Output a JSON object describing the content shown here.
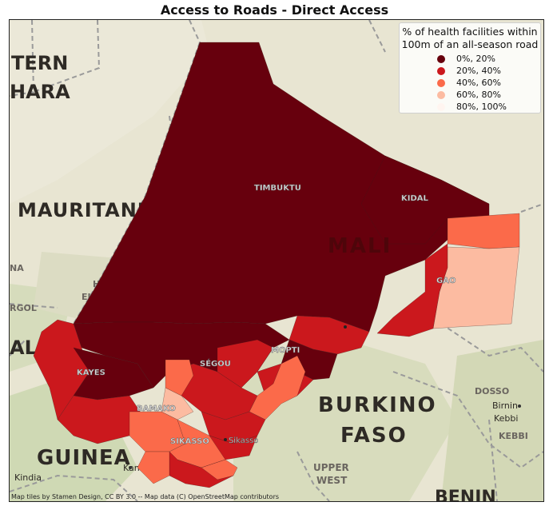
{
  "title": "Access to Roads - Direct Access",
  "legend": {
    "title_line1": "% of health facilities within",
    "title_line2": "100m of an all-season road",
    "items": [
      {
        "label": "0%,  20%",
        "color": "#67000d"
      },
      {
        "label": "20%,  40%",
        "color": "#cb181d"
      },
      {
        "label": "40%,  60%",
        "color": "#fb6a4a"
      },
      {
        "label": "60%,  80%",
        "color": "#fcbba1"
      },
      {
        "label": "80%, 100%",
        "color": "#fff5f0"
      }
    ]
  },
  "place_labels": {
    "western_sahara_1": "TERN",
    "western_sahara_2": "HARA",
    "mauritania": "MAURITANIA",
    "hodh_1": "HODH",
    "hodh_2": "EL GHARBI",
    "gorgol": "RGOL",
    "na": "NA",
    "al": "AL",
    "mali": "MALI",
    "timbuktu": "TIMBUKTU",
    "kidal": "KIDAL",
    "gao": "GAO",
    "mopti": "MOPTI",
    "segou": "SÉGOU",
    "kayes": "KAYES",
    "bamako": "BAMAKO",
    "sikasso": "SIKASSO",
    "sikasso_town": "Sikasso",
    "burkina_1": "BURKINO",
    "burkina_2": "FASO",
    "guinea": "GUINEA",
    "kankan": "Kankan",
    "kindia": "Kindia",
    "upper_west_1": "UPPER",
    "upper_west_2": "WEST",
    "dosso": "DOSSO",
    "birnin_1": "Birnin",
    "birnin_2": "Kebbi",
    "kebbi": "KEBBI",
    "benin": "BENIN"
  },
  "attribution": "Map tiles by Stamen Design, CC BY 3.0 -- Map data (C) OpenStreetMap contributors"
}
